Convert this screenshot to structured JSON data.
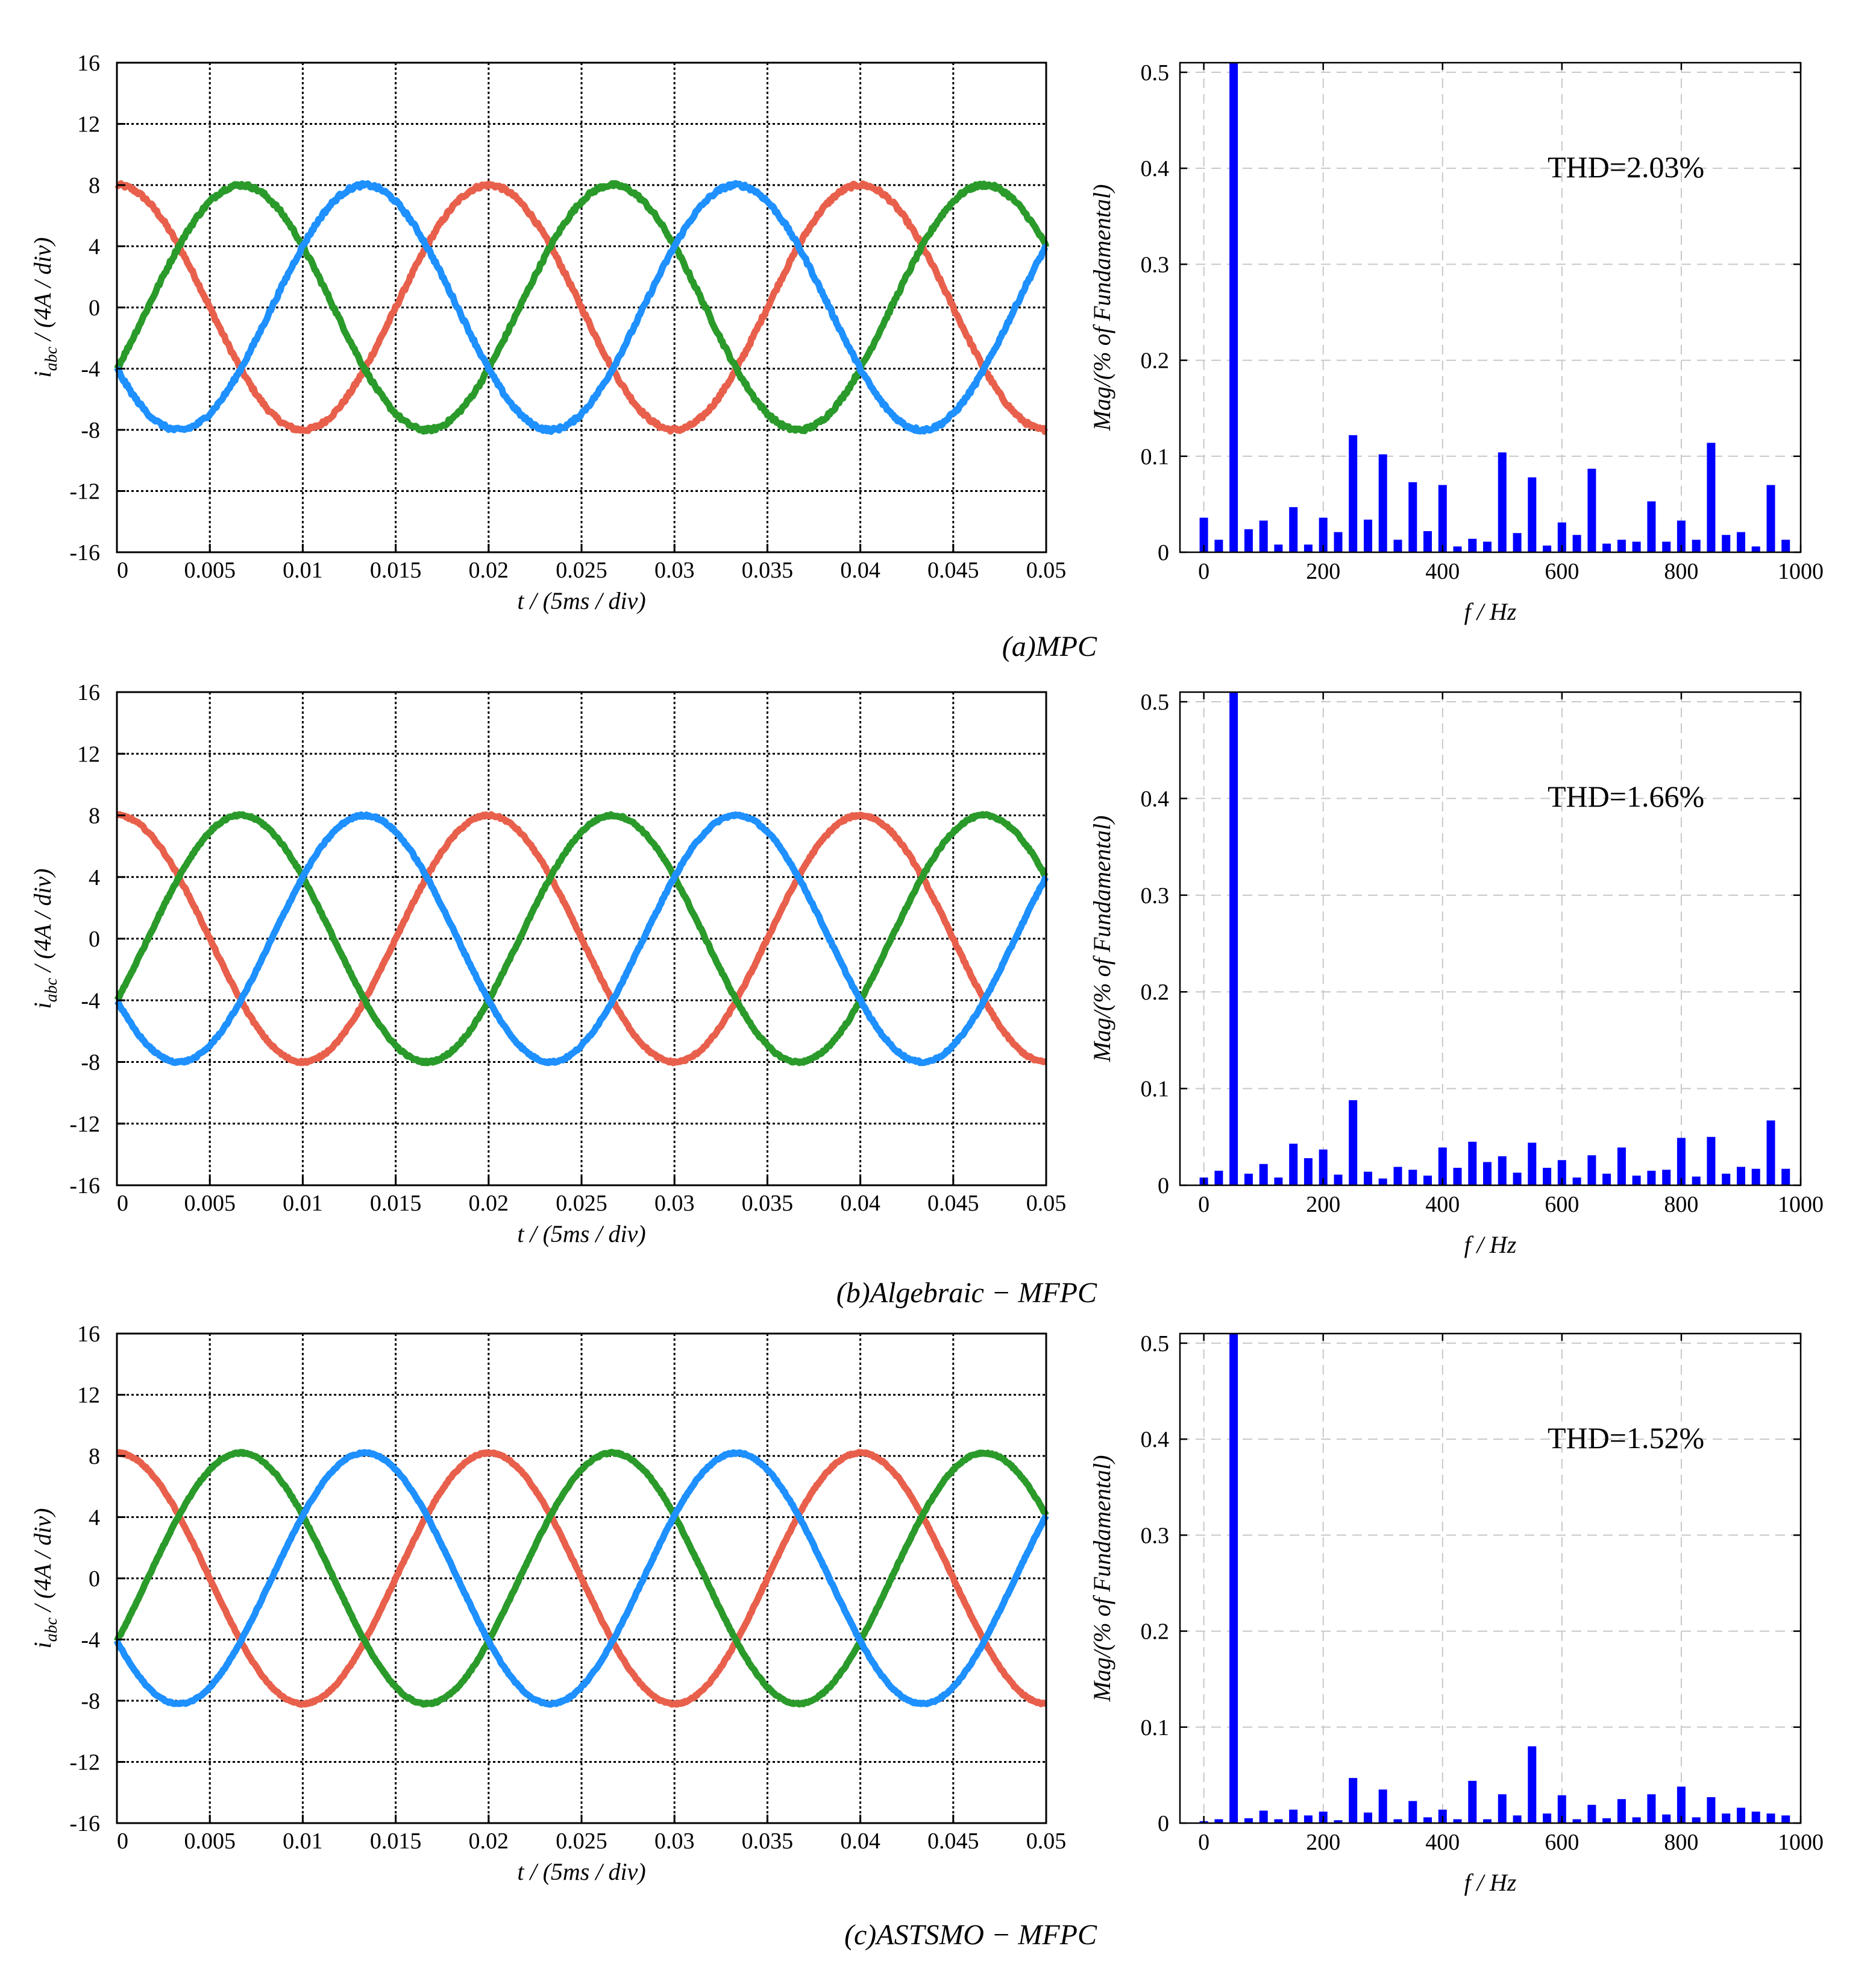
{
  "time_ylabel": {
    "main": "i",
    "sub": "abc",
    "rest": " / (4A / div)"
  },
  "time_xlabel": "t / (5ms / div)",
  "fft_ylabel": "Mag/(% of Fundamental)",
  "fft_xlabel": "f / Hz",
  "colors": {
    "phase_a": "#e8604c",
    "phase_b": "#2a9a2a",
    "phase_c": "#1e90ff",
    "bars": "#0000ff"
  },
  "chart_data": [
    {
      "type": "line",
      "panel": "a",
      "xlabel": "t / (5ms / div)",
      "ylabel": "i_abc / (4A / div)",
      "xlim": [
        0,
        0.05
      ],
      "ylim": [
        -16,
        16
      ],
      "x_ticks": [
        "0",
        "0.005",
        "0.01",
        "0.015",
        "0.02",
        "0.025",
        "0.03",
        "0.035",
        "0.04",
        "0.045",
        "0.05"
      ],
      "y_ticks": [
        "16",
        "12",
        "8",
        "4",
        "0",
        "-4",
        "-8",
        "-12",
        "-16"
      ],
      "grid": true,
      "amplitude": 8,
      "frequency_hz": 50,
      "noise": 0.12,
      "series": [
        {
          "phase_deg": 0,
          "color_key": "phase_a"
        },
        {
          "phase_deg": -120,
          "color_key": "phase_b"
        },
        {
          "phase_deg": 120,
          "color_key": "phase_c"
        }
      ]
    },
    {
      "type": "bar",
      "panel": "a",
      "xlabel": "f / Hz",
      "ylabel": "Mag/(% of Fundamental)",
      "xlim": [
        -40,
        1000
      ],
      "ylim": [
        0,
        0.51
      ],
      "x_ticks": [
        "0",
        "200",
        "400",
        "600",
        "800",
        "1000"
      ],
      "y_ticks": [
        "0.5",
        "0.4",
        "0.3",
        "0.2",
        "0.1",
        "0"
      ],
      "annotation": "THD=2.03%",
      "categories": [
        0,
        25,
        50,
        75,
        100,
        125,
        150,
        175,
        200,
        225,
        250,
        275,
        300,
        325,
        350,
        375,
        400,
        425,
        450,
        475,
        500,
        525,
        550,
        575,
        600,
        625,
        650,
        675,
        700,
        725,
        750,
        775,
        800,
        825,
        850,
        875,
        900,
        925,
        950,
        975
      ],
      "values": [
        0.036,
        0.013,
        0.51,
        0.024,
        0.033,
        0.008,
        0.047,
        0.008,
        0.036,
        0.021,
        0.122,
        0.034,
        0.102,
        0.013,
        0.073,
        0.022,
        0.07,
        0.006,
        0.014,
        0.011,
        0.104,
        0.02,
        0.078,
        0.007,
        0.031,
        0.018,
        0.087,
        0.009,
        0.013,
        0.011,
        0.053,
        0.011,
        0.033,
        0.013,
        0.114,
        0.018,
        0.021,
        0.006,
        0.07,
        0.013
      ]
    },
    {
      "type": "line",
      "panel": "b",
      "xlabel": "t / (5ms / div)",
      "ylabel": "i_abc / (4A / div)",
      "xlim": [
        0,
        0.05
      ],
      "ylim": [
        -16,
        16
      ],
      "x_ticks": [
        "0",
        "0.005",
        "0.01",
        "0.015",
        "0.02",
        "0.025",
        "0.03",
        "0.035",
        "0.04",
        "0.045",
        "0.05"
      ],
      "y_ticks": [
        "16",
        "12",
        "8",
        "4",
        "0",
        "-4",
        "-8",
        "-12",
        "-16"
      ],
      "grid": true,
      "amplitude": 8,
      "frequency_hz": 50,
      "noise": 0.07,
      "series": [
        {
          "phase_deg": 0,
          "color_key": "phase_a"
        },
        {
          "phase_deg": -120,
          "color_key": "phase_b"
        },
        {
          "phase_deg": 120,
          "color_key": "phase_c"
        }
      ]
    },
    {
      "type": "bar",
      "panel": "b",
      "xlabel": "f / Hz",
      "ylabel": "Mag/(% of Fundamental)",
      "xlim": [
        -40,
        1000
      ],
      "ylim": [
        0,
        0.51
      ],
      "x_ticks": [
        "0",
        "200",
        "400",
        "600",
        "800",
        "1000"
      ],
      "y_ticks": [
        "0.5",
        "0.4",
        "0.3",
        "0.2",
        "0.1",
        "0"
      ],
      "annotation": "THD=1.66%",
      "categories": [
        0,
        25,
        50,
        75,
        100,
        125,
        150,
        175,
        200,
        225,
        250,
        275,
        300,
        325,
        350,
        375,
        400,
        425,
        450,
        475,
        500,
        525,
        550,
        575,
        600,
        625,
        650,
        675,
        700,
        725,
        750,
        775,
        800,
        825,
        850,
        875,
        900,
        925,
        950,
        975
      ],
      "values": [
        0.008,
        0.015,
        0.51,
        0.012,
        0.022,
        0.008,
        0.043,
        0.028,
        0.037,
        0.011,
        0.088,
        0.014,
        0.007,
        0.019,
        0.016,
        0.01,
        0.039,
        0.018,
        0.045,
        0.024,
        0.03,
        0.013,
        0.044,
        0.018,
        0.026,
        0.008,
        0.031,
        0.012,
        0.039,
        0.01,
        0.015,
        0.016,
        0.049,
        0.009,
        0.05,
        0.012,
        0.019,
        0.017,
        0.067,
        0.017
      ]
    },
    {
      "type": "line",
      "panel": "c",
      "xlabel": "t / (5ms / div)",
      "ylabel": "i_abc / (4A / div)",
      "xlim": [
        0,
        0.05
      ],
      "ylim": [
        -16,
        16
      ],
      "x_ticks": [
        "0",
        "0.005",
        "0.01",
        "0.015",
        "0.02",
        "0.025",
        "0.03",
        "0.035",
        "0.04",
        "0.045",
        "0.05"
      ],
      "y_ticks": [
        "16",
        "12",
        "8",
        "4",
        "0",
        "-4",
        "-8",
        "-12",
        "-16"
      ],
      "grid": true,
      "amplitude": 8.2,
      "frequency_hz": 50,
      "noise": 0.05,
      "series": [
        {
          "phase_deg": 0,
          "color_key": "phase_a"
        },
        {
          "phase_deg": -120,
          "color_key": "phase_b"
        },
        {
          "phase_deg": 120,
          "color_key": "phase_c"
        }
      ]
    },
    {
      "type": "bar",
      "panel": "c",
      "xlabel": "f / Hz",
      "ylabel": "Mag/(% of Fundamental)",
      "xlim": [
        -40,
        1000
      ],
      "ylim": [
        0,
        0.51
      ],
      "x_ticks": [
        "0",
        "200",
        "400",
        "600",
        "800",
        "1000"
      ],
      "y_ticks": [
        "0.5",
        "0.4",
        "0.3",
        "0.2",
        "0.1",
        "0"
      ],
      "annotation": "THD=1.52%",
      "categories": [
        0,
        25,
        50,
        75,
        100,
        125,
        150,
        175,
        200,
        225,
        250,
        275,
        300,
        325,
        350,
        375,
        400,
        425,
        450,
        475,
        500,
        525,
        550,
        575,
        600,
        625,
        650,
        675,
        700,
        725,
        750,
        775,
        800,
        825,
        850,
        875,
        900,
        925,
        950,
        975
      ],
      "values": [
        0.002,
        0.004,
        0.51,
        0.005,
        0.013,
        0.004,
        0.014,
        0.008,
        0.012,
        0.003,
        0.047,
        0.011,
        0.035,
        0.004,
        0.023,
        0.006,
        0.014,
        0.004,
        0.044,
        0.004,
        0.03,
        0.008,
        0.08,
        0.01,
        0.029,
        0.004,
        0.019,
        0.005,
        0.025,
        0.006,
        0.03,
        0.009,
        0.038,
        0.006,
        0.027,
        0.01,
        0.016,
        0.012,
        0.01,
        0.008
      ]
    }
  ],
  "captions": [
    {
      "label": "(a)",
      "method": "MPC"
    },
    {
      "label": "(b)",
      "method": "Algebraic − MFPC"
    },
    {
      "label": "(c)",
      "method": "ASTSMO − MFPC"
    }
  ]
}
